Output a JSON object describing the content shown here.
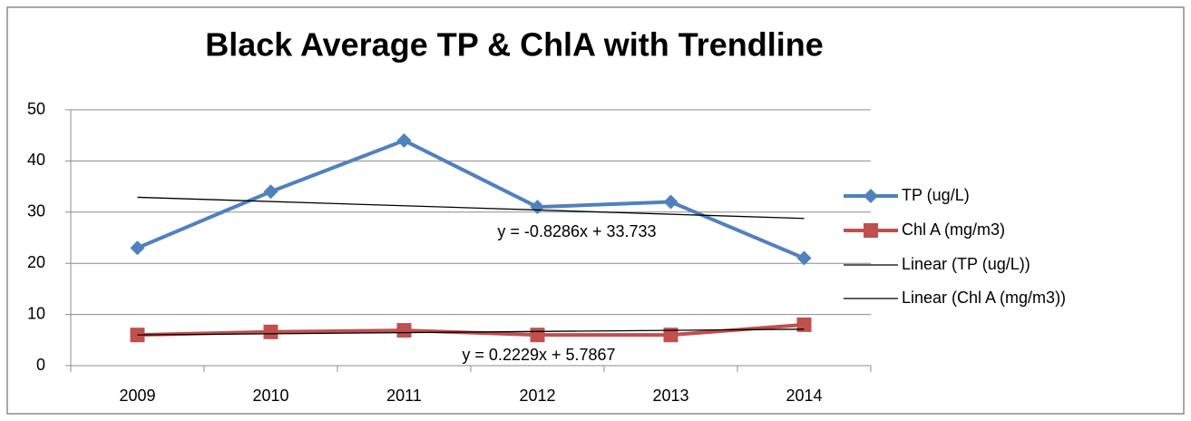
{
  "chart_data": {
    "type": "line",
    "title": "Black Average TP & ChlA with Trendline",
    "categories": [
      "2009",
      "2010",
      "2011",
      "2012",
      "2013",
      "2014"
    ],
    "series": [
      {
        "name": "TP (ug/L)",
        "color": "#4f81bd",
        "marker": "diamond",
        "values": [
          23,
          34,
          44,
          31,
          32,
          21
        ]
      },
      {
        "name": "Chl A (mg/m3)",
        "color": "#c0504d",
        "marker": "square",
        "values": [
          6,
          6.6,
          6.9,
          6,
          6,
          8
        ]
      }
    ],
    "trendlines": [
      {
        "name": "Linear (TP (ug/L))",
        "slope": -0.8286,
        "intercept": 33.733,
        "label": "y = -0.8286x + 33.733"
      },
      {
        "name": "Linear (Chl A (mg/m3))",
        "slope": 0.2229,
        "intercept": 5.7867,
        "label": "y = 0.2229x + 5.7867"
      }
    ],
    "ylim": [
      0,
      50
    ],
    "yticks": [
      0,
      10,
      20,
      30,
      40,
      50
    ],
    "grid": true,
    "legend": "right"
  }
}
